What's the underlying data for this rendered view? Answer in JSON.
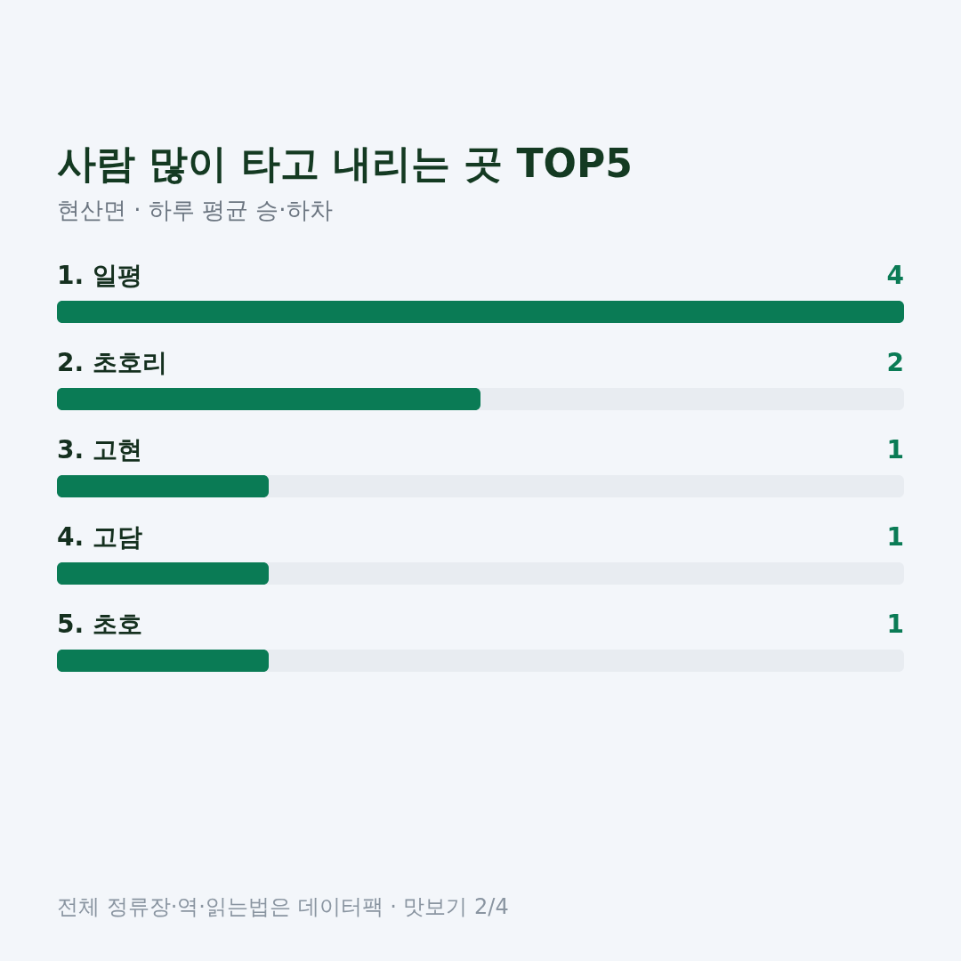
{
  "chart_data": {
    "type": "bar",
    "orientation": "horizontal",
    "title": "사람 많이 타고 내리는 곳 TOP5",
    "subtitle": "현산면 · 하루 평균 승·하차",
    "categories": [
      "1. 일평",
      "2. 초호리",
      "3. 고현",
      "4. 고담",
      "5. 초호"
    ],
    "values": [
      4,
      2,
      1,
      1,
      1
    ],
    "color": "#0a7b55",
    "xlim": [
      0,
      4
    ],
    "tick_labels": false,
    "data_labels": true,
    "annotations": [
      "전체 정류장·역·읽는법은 데이터팩 · 맛보기 2/4"
    ]
  }
}
